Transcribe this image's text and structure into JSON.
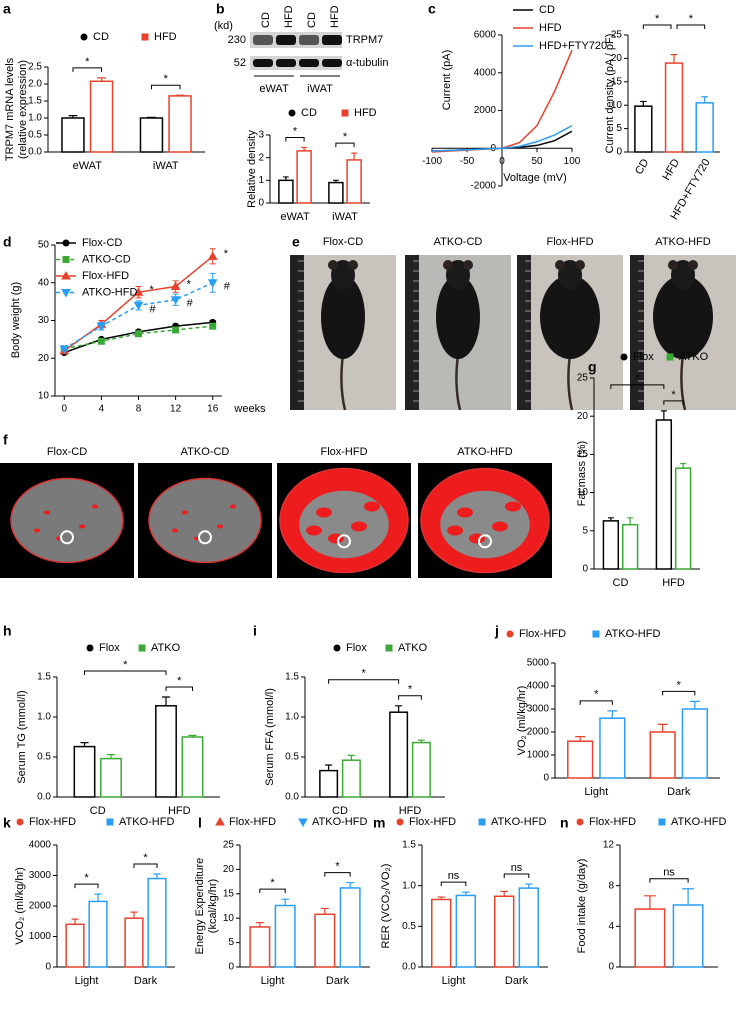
{
  "chart_data": [
    {
      "panel": "a",
      "type": "bar",
      "ylabel": [
        "TRPM7 mRNA levels",
        "(relative expression)"
      ],
      "categories": [
        "eWAT",
        "iWAT"
      ],
      "series": [
        {
          "name": "CD",
          "color": "#000000",
          "values": [
            1.0,
            1.0
          ],
          "errors": [
            0.07,
            0.02
          ]
        },
        {
          "name": "HFD",
          "color": "#e8412c",
          "values": [
            2.08,
            1.65
          ],
          "errors": [
            0.1,
            0.02
          ]
        }
      ],
      "ylim": [
        0,
        2.5
      ],
      "yticks": [
        {
          "value": 0,
          "label": "0.0"
        },
        0.5,
        {
          "value": 1,
          "label": "1.0"
        },
        1.5,
        {
          "value": 2,
          "label": "2.0"
        },
        2.5
      ],
      "annotations": {
        "groups": [
          "*",
          "*"
        ]
      }
    },
    {
      "panel": "b",
      "type": "bar",
      "ylabel": "Relative density",
      "blot": {
        "kd": "(kd)",
        "markers": [
          "230",
          "52"
        ],
        "lanes": [
          "CD",
          "HFD",
          "CD",
          "HFD"
        ],
        "proteins": [
          "TRPM7",
          "α-tubulin"
        ],
        "groups": [
          "eWAT",
          "iWAT"
        ]
      },
      "categories": [
        "eWAT",
        "iWAT"
      ],
      "series": [
        {
          "name": "CD",
          "color": "#000000",
          "values": [
            1.0,
            0.9
          ],
          "errors": [
            0.15,
            0.1
          ]
        },
        {
          "name": "HFD",
          "color": "#e8412c",
          "values": [
            2.3,
            1.9
          ],
          "errors": [
            0.15,
            0.3
          ]
        }
      ],
      "ylim": [
        0,
        3
      ],
      "yticks": [
        0,
        1,
        2,
        3
      ],
      "annotations": {
        "groups": [
          "*",
          "*"
        ]
      }
    },
    {
      "panel": "c",
      "type": "line",
      "xlabel": "Voltage (mV)",
      "ylabel": "Current (pA)",
      "x": [
        -100,
        -50,
        0,
        25,
        50,
        75,
        100
      ],
      "series": [
        {
          "name": "CD",
          "color": "#000000",
          "values": [
            -150,
            -80,
            0,
            50,
            150,
            400,
            900
          ]
        },
        {
          "name": "HFD",
          "color": "#e8412c",
          "values": [
            -200,
            -100,
            0,
            300,
            1200,
            3000,
            5200
          ]
        },
        {
          "name": "HFD+FTY720",
          "color": "#2a9df4",
          "values": [
            -150,
            -80,
            0,
            100,
            350,
            700,
            1200
          ]
        }
      ],
      "xlim": [
        -100,
        100
      ],
      "xticks": [
        -100,
        -50,
        0,
        50,
        100
      ],
      "ylim": [
        -2000,
        6000
      ],
      "yticks": [
        -2000,
        0,
        2000,
        4000,
        6000
      ]
    },
    {
      "type": "bar",
      "ylabel": "Current density (pA / pF)",
      "categories": [
        "CD",
        "HFD",
        "HFD+FTY720"
      ],
      "values": [
        9.8,
        19,
        10.5
      ],
      "errors": [
        1,
        1.8,
        1.3
      ],
      "colors": [
        "#000000",
        "#e8412c",
        "#2a9df4"
      ],
      "ylim": [
        0,
        25
      ],
      "yticks": [
        0,
        5,
        10,
        15,
        20,
        25
      ],
      "annotations": {
        "pairs": [
          "*",
          "*"
        ]
      }
    },
    {
      "panel": "d",
      "type": "line",
      "xlabel": "weeks",
      "ylabel": "Body weight (g)",
      "x": [
        0,
        4,
        8,
        12,
        16
      ],
      "series": [
        {
          "name": "Flox-CD",
          "color": "#000000",
          "values": [
            21.5,
            25,
            27,
            28.5,
            29.5
          ],
          "errors": [
            0.4,
            0.4,
            0.5,
            0.5,
            0.5
          ]
        },
        {
          "name": "ATKO-CD",
          "color": "#3aa935",
          "dashed": true,
          "values": [
            22.5,
            24.5,
            26.5,
            27.5,
            28.5
          ],
          "errors": [
            0.4,
            0.4,
            0.5,
            0.5,
            0.6
          ]
        },
        {
          "name": "Flox-HFD",
          "color": "#e8412c",
          "values": [
            22,
            29,
            37.5,
            39,
            47
          ],
          "errors": [
            0.5,
            1.0,
            1.5,
            1.5,
            2.0
          ]
        },
        {
          "name": "ATKO-HFD",
          "color": "#2a9df4",
          "dashed": true,
          "values": [
            22.5,
            28.5,
            34,
            35.5,
            40
          ],
          "errors": [
            0.5,
            1.0,
            1.2,
            1.5,
            2.5
          ]
        }
      ],
      "xlim": [
        -1,
        17
      ],
      "xticks": [
        0,
        4,
        8,
        12,
        16
      ],
      "ylim": [
        10,
        50
      ],
      "yticks": [
        10,
        20,
        30,
        40,
        50
      ],
      "annotations": {
        "points": [
          "*",
          "#",
          "*",
          "#",
          "*",
          "#"
        ]
      }
    },
    {
      "panel": "e",
      "type": "image",
      "labels": [
        "Flox-CD",
        "ATKO-CD",
        "Flox-HFD",
        "ATKO-HFD"
      ]
    },
    {
      "panel": "f",
      "type": "image",
      "labels": [
        "Flox-CD",
        "ATKO-CD",
        "Flox-HFD",
        "ATKO-HFD"
      ]
    },
    {
      "panel": "g",
      "type": "bar",
      "ylabel": "Fat mass (%)",
      "categories": [
        "CD",
        "HFD"
      ],
      "series": [
        {
          "name": "Flox",
          "color": "#000000",
          "values": [
            6.3,
            19.5
          ],
          "errors": [
            0.4,
            1.2
          ]
        },
        {
          "name": "ATKO",
          "color": "#3aa935",
          "values": [
            5.8,
            13.2
          ],
          "errors": [
            0.9,
            0.6
          ]
        }
      ],
      "ylim": [
        0,
        25
      ],
      "yticks": [
        0,
        5,
        10,
        15,
        20,
        25
      ],
      "annotations": {
        "groups": [
          null,
          "*"
        ],
        "across": "*"
      }
    },
    {
      "panel": "h",
      "type": "bar",
      "ylabel": "Serum TG (mmol/l)",
      "categories": [
        "CD",
        "HFD"
      ],
      "series": [
        {
          "name": "Flox",
          "color": "#000000",
          "values": [
            0.63,
            1.14
          ],
          "errors": [
            0.05,
            0.11
          ]
        },
        {
          "name": "ATKO",
          "color": "#3aa935",
          "values": [
            0.48,
            0.75
          ],
          "errors": [
            0.05,
            0.02
          ]
        }
      ],
      "ylim": [
        0,
        1.5
      ],
      "yticks": [
        {
          "value": 0,
          "label": "0.0"
        },
        0.5,
        {
          "value": 1,
          "label": "1.0"
        },
        1.5
      ],
      "annotations": {
        "groups": [
          null,
          "*"
        ],
        "across": "*"
      }
    },
    {
      "panel": "i",
      "type": "bar",
      "ylabel": "Serum FFA (mmol/l)",
      "categories": [
        "CD",
        "HFD"
      ],
      "series": [
        {
          "name": "Flox",
          "color": "#000000",
          "values": [
            0.33,
            1.06
          ],
          "errors": [
            0.07,
            0.08
          ]
        },
        {
          "name": "ATKO",
          "color": "#3aa935",
          "values": [
            0.46,
            0.68
          ],
          "errors": [
            0.06,
            0.03
          ]
        }
      ],
      "ylim": [
        0,
        1.5
      ],
      "yticks": [
        {
          "value": 0,
          "label": "0.0"
        },
        0.5,
        {
          "value": 1,
          "label": "1.0"
        },
        1.5
      ],
      "annotations": {
        "groups": [
          null,
          "*"
        ],
        "across": "*"
      }
    },
    {
      "panel": "j",
      "type": "bar",
      "ylabel": "VO₂ (ml/kg/hr)",
      "categories": [
        "Light",
        "Dark"
      ],
      "series": [
        {
          "name": "Flox-HFD",
          "color": "#e8412c",
          "values": [
            1600,
            2000
          ],
          "errors": [
            200,
            330
          ]
        },
        {
          "name": "ATKO-HFD",
          "color": "#2a9df4",
          "values": [
            2600,
            3000
          ],
          "errors": [
            320,
            330
          ]
        }
      ],
      "ylim": [
        0,
        5000
      ],
      "yticks": [
        0,
        1000,
        2000,
        3000,
        4000,
        5000
      ],
      "annotations": {
        "groups": [
          "*",
          "*"
        ]
      }
    },
    {
      "panel": "k",
      "type": "bar",
      "ylabel": "VCO₂ (ml/kg/hr)",
      "categories": [
        "Light",
        "Dark"
      ],
      "series": [
        {
          "name": "Flox-HFD",
          "color": "#e8412c",
          "values": [
            1400,
            1600
          ],
          "errors": [
            170,
            200
          ]
        },
        {
          "name": "ATKO-HFD",
          "color": "#2a9df4",
          "values": [
            2150,
            2900
          ],
          "errors": [
            240,
            150
          ]
        }
      ],
      "ylim": [
        0,
        4000
      ],
      "yticks": [
        0,
        1000,
        2000,
        3000,
        4000
      ],
      "annotations": {
        "groups": [
          "*",
          "*"
        ]
      }
    },
    {
      "panel": "l",
      "type": "bar",
      "ylabel": [
        "Energy Expenditure",
        "(kcal/kg/hr)"
      ],
      "categories": [
        "Light",
        "Dark"
      ],
      "series": [
        {
          "name": "Flox-HFD",
          "color": "#e8412c",
          "values": [
            8.2,
            10.8
          ],
          "errors": [
            0.9,
            1.2
          ]
        },
        {
          "name": "ATKO-HFD",
          "color": "#2a9df4",
          "values": [
            12.6,
            16.2
          ],
          "errors": [
            1.3,
            1.1
          ]
        }
      ],
      "ylim": [
        0,
        25
      ],
      "yticks": [
        0,
        5,
        10,
        15,
        20,
        25
      ],
      "annotations": {
        "groups": [
          "*",
          "*"
        ]
      }
    },
    {
      "panel": "m",
      "type": "bar",
      "ylabel": "RER (VCO₂/VO₂)",
      "categories": [
        "Light",
        "Dark"
      ],
      "series": [
        {
          "name": "Flox-HFD",
          "color": "#e8412c",
          "values": [
            0.83,
            0.87
          ],
          "errors": [
            0.03,
            0.06
          ]
        },
        {
          "name": "ATKO-HFD",
          "color": "#2a9df4",
          "values": [
            0.88,
            0.97
          ],
          "errors": [
            0.04,
            0.05
          ]
        }
      ],
      "ylim": [
        0,
        1.5
      ],
      "yticks": [
        {
          "value": 0,
          "label": "0.0"
        },
        0.5,
        {
          "value": 1,
          "label": "1.0"
        },
        1.5
      ],
      "annotations": {
        "groups": [
          "ns",
          "ns"
        ]
      }
    },
    {
      "panel": "n",
      "type": "bar",
      "ylabel": "Food intake (g/day)",
      "categories": [
        null
      ],
      "series": [
        {
          "name": "Flox-HFD",
          "color": "#e8412c",
          "values": [
            5.7
          ],
          "errors": [
            1.3
          ]
        },
        {
          "name": "ATKO-HFD",
          "color": "#2a9df4",
          "values": [
            6.1
          ],
          "errors": [
            1.6
          ]
        }
      ],
      "ylim": [
        0,
        12
      ],
      "yticks": [
        0,
        4,
        8,
        12
      ],
      "annotations": {
        "groups": [
          "ns"
        ]
      }
    }
  ]
}
